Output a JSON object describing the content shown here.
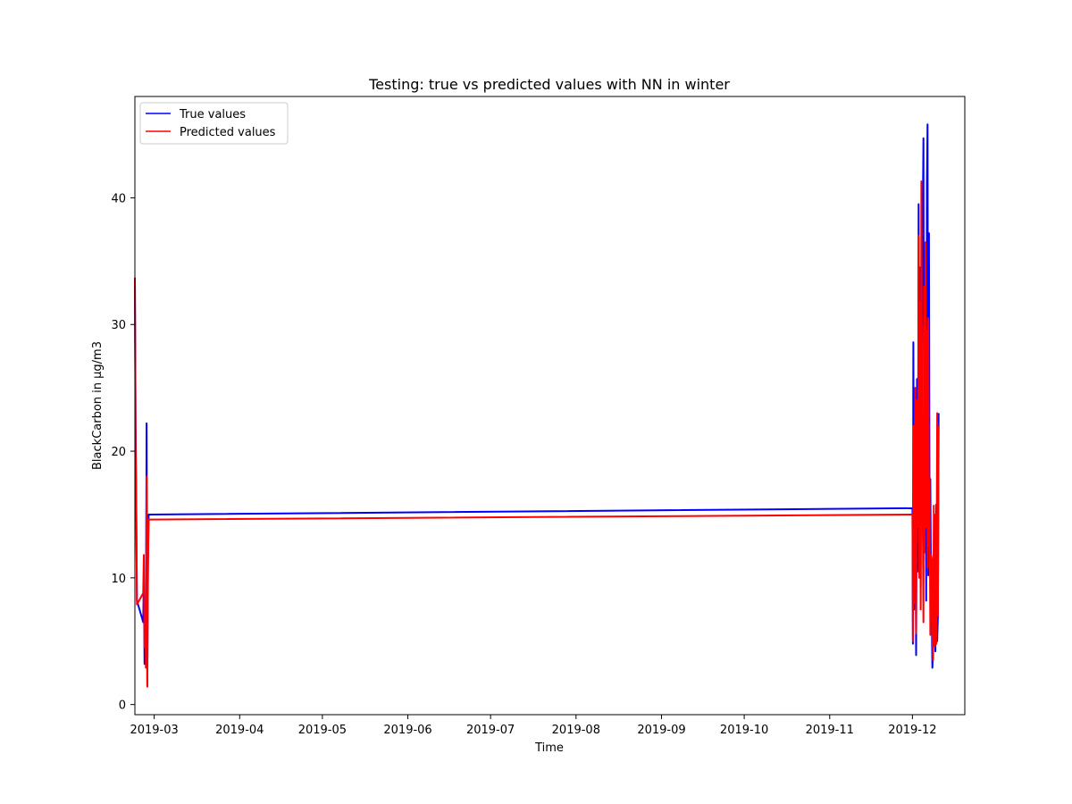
{
  "chart_data": {
    "type": "line",
    "title": "Testing: true vs predicted values with NN in winter",
    "xlabel": "Time",
    "ylabel": "BlackCarbon in µg/m3",
    "xlim": [
      "2019-02-22",
      "2019-12-20"
    ],
    "ylim": [
      -0.8,
      48
    ],
    "x_ticks": [
      "2019-03",
      "2019-04",
      "2019-05",
      "2019-06",
      "2019-07",
      "2019-08",
      "2019-09",
      "2019-10",
      "2019-11",
      "2019-12"
    ],
    "y_ticks": [
      0,
      10,
      20,
      30,
      40
    ],
    "grid": false,
    "legend": {
      "position": "top-left",
      "entries": [
        "True values",
        "Predicted values"
      ]
    },
    "series": [
      {
        "name": "True values",
        "color": "#0000ff",
        "points": [
          [
            "2019-02-22T00",
            33.5
          ],
          [
            "2019-02-22T06",
            22.0
          ],
          [
            "2019-02-22T12",
            16.5
          ],
          [
            "2019-02-22T18",
            8.2
          ],
          [
            "2019-02-25T00",
            6.5
          ],
          [
            "2019-02-25T06",
            10.0
          ],
          [
            "2019-02-25T12",
            3.2
          ],
          [
            "2019-02-25T18",
            7.6
          ],
          [
            "2019-02-26T00",
            5.0
          ],
          [
            "2019-02-26T06",
            22.2
          ],
          [
            "2019-02-26T12",
            1.5
          ],
          [
            "2019-02-26T18",
            11.5
          ],
          [
            "2019-02-27T00",
            15.0
          ],
          [
            "2019-12-01T00",
            15.5
          ],
          [
            "2019-12-01T04",
            4.8
          ],
          [
            "2019-12-01T08",
            28.6
          ],
          [
            "2019-12-01T14",
            7.5
          ],
          [
            "2019-12-02T00",
            22.0
          ],
          [
            "2019-12-02T08",
            3.9
          ],
          [
            "2019-12-02T16",
            25.7
          ],
          [
            "2019-12-03T00",
            10.5
          ],
          [
            "2019-12-03T06",
            39.5
          ],
          [
            "2019-12-03T12",
            16.0
          ],
          [
            "2019-12-03T18",
            34.5
          ],
          [
            "2019-12-04T00",
            9.3
          ],
          [
            "2019-12-04T06",
            23.0
          ],
          [
            "2019-12-04T12",
            31.5
          ],
          [
            "2019-12-05T00",
            44.7
          ],
          [
            "2019-12-05T06",
            15.0
          ],
          [
            "2019-12-05T12",
            30.5
          ],
          [
            "2019-12-05T18",
            28.0
          ],
          [
            "2019-12-06T00",
            8.2
          ],
          [
            "2019-12-06T06",
            41.0
          ],
          [
            "2019-12-06T12",
            45.8
          ],
          [
            "2019-12-06T18",
            10.2
          ],
          [
            "2019-12-07T00",
            37.2
          ],
          [
            "2019-12-07T06",
            12.8
          ],
          [
            "2019-12-07T12",
            17.8
          ],
          [
            "2019-12-07T18",
            9.0
          ],
          [
            "2019-12-08T00",
            7.0
          ],
          [
            "2019-12-08T06",
            2.9
          ],
          [
            "2019-12-08T12",
            4.5
          ],
          [
            "2019-12-08T18",
            11.8
          ],
          [
            "2019-12-09T00",
            6.5
          ],
          [
            "2019-12-09T08",
            4.2
          ],
          [
            "2019-12-09T16",
            15.8
          ],
          [
            "2019-12-10T00",
            5.0
          ],
          [
            "2019-12-10T06",
            7.0
          ],
          [
            "2019-12-10T12",
            23.0
          ]
        ]
      },
      {
        "name": "Predicted values",
        "color": "#ff0000",
        "points": [
          [
            "2019-02-22T00",
            33.7
          ],
          [
            "2019-02-22T06",
            20.5
          ],
          [
            "2019-02-22T12",
            15.5
          ],
          [
            "2019-02-22T18",
            7.9
          ],
          [
            "2019-02-25T00",
            8.8
          ],
          [
            "2019-02-25T06",
            11.8
          ],
          [
            "2019-02-25T12",
            4.5
          ],
          [
            "2019-02-25T18",
            7.8
          ],
          [
            "2019-02-26T00",
            2.9
          ],
          [
            "2019-02-26T06",
            18.0
          ],
          [
            "2019-02-26T12",
            1.4
          ],
          [
            "2019-02-26T18",
            11.0
          ],
          [
            "2019-02-27T00",
            14.6
          ],
          [
            "2019-12-01T00",
            15.0
          ],
          [
            "2019-12-01T04",
            5.0
          ],
          [
            "2019-12-01T08",
            22.0
          ],
          [
            "2019-12-01T14",
            8.0
          ],
          [
            "2019-12-02T00",
            25.0
          ],
          [
            "2019-12-02T08",
            5.6
          ],
          [
            "2019-12-02T16",
            24.0
          ],
          [
            "2019-12-03T00",
            14.0
          ],
          [
            "2019-12-03T06",
            37.0
          ],
          [
            "2019-12-03T12",
            10.0
          ],
          [
            "2019-12-03T18",
            31.8
          ],
          [
            "2019-12-04T00",
            7.5
          ],
          [
            "2019-12-04T06",
            41.3
          ],
          [
            "2019-12-04T12",
            22.0
          ],
          [
            "2019-12-05T00",
            6.5
          ],
          [
            "2019-12-05T06",
            33.0
          ],
          [
            "2019-12-05T12",
            12.0
          ],
          [
            "2019-12-05T18",
            36.5
          ],
          [
            "2019-12-06T00",
            14.0
          ],
          [
            "2019-12-06T06",
            29.5
          ],
          [
            "2019-12-06T12",
            10.8
          ],
          [
            "2019-12-06T18",
            30.5
          ],
          [
            "2019-12-07T00",
            12.5
          ],
          [
            "2019-12-07T06",
            17.8
          ],
          [
            "2019-12-07T12",
            5.5
          ],
          [
            "2019-12-07T18",
            11.8
          ],
          [
            "2019-12-08T00",
            11.5
          ],
          [
            "2019-12-08T06",
            5.5
          ],
          [
            "2019-12-08T12",
            3.5
          ],
          [
            "2019-12-08T18",
            15.7
          ],
          [
            "2019-12-09T00",
            4.6
          ],
          [
            "2019-12-09T08",
            15.0
          ],
          [
            "2019-12-09T16",
            4.8
          ],
          [
            "2019-12-10T00",
            23.0
          ],
          [
            "2019-12-10T06",
            7.0
          ],
          [
            "2019-12-10T12",
            22.0
          ]
        ]
      }
    ]
  }
}
